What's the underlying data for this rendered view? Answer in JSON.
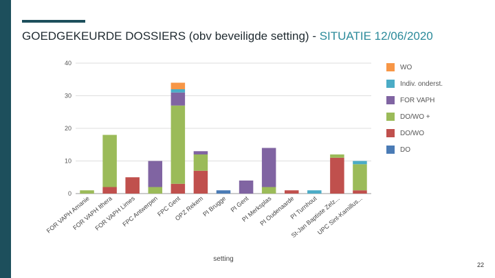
{
  "slide": {
    "title_main": "GOEDGEKEURDE DOSSIERS (obv beveiligde setting) - ",
    "title_accent": "SITUATIE 12/06/2020",
    "page_number": "22"
  },
  "chart_data": {
    "type": "bar",
    "stacked": true,
    "xlabel": "setting",
    "ylabel": "",
    "ylim": [
      0,
      40
    ],
    "yticks": [
      "0",
      "10",
      "20",
      "30",
      "40"
    ],
    "grid": true,
    "legend_position": "right",
    "categories": [
      "FOR VAPH Amanie",
      "FOR VAPH Ithera",
      "FOR VAPH Limes",
      "FPC Antwerpen",
      "FPC Gent",
      "OPZ Rekem",
      "PI Brugge",
      "PI Gent",
      "PI Merksplas",
      "PI Oudenaarde",
      "PI Turnhout",
      "St-Jan Baptiste Zelz...",
      "UPC Sint-Kamillus..."
    ],
    "series": [
      {
        "name": "DO",
        "color": "#4a7bb5",
        "values": [
          0,
          0,
          0,
          0,
          0,
          0,
          1,
          0,
          0,
          0,
          0,
          0,
          0
        ]
      },
      {
        "name": "DO/WO",
        "color": "#c0504d",
        "values": [
          0,
          2,
          5,
          0,
          3,
          7,
          0,
          0,
          0,
          1,
          0,
          11,
          1
        ]
      },
      {
        "name": "DO/WO +",
        "color": "#9bbb59",
        "values": [
          1,
          16,
          0,
          2,
          24,
          5,
          0,
          0,
          2,
          0,
          0,
          1,
          8
        ]
      },
      {
        "name": "FOR VAPH",
        "color": "#8064a2",
        "values": [
          0,
          0,
          0,
          8,
          4,
          1,
          0,
          4,
          12,
          0,
          0,
          0,
          0
        ]
      },
      {
        "name": "Indiv. onderst.",
        "color": "#4bacc6",
        "values": [
          0,
          0,
          0,
          0,
          1,
          0,
          0,
          0,
          0,
          0,
          1,
          0,
          1
        ]
      },
      {
        "name": "WO",
        "color": "#f79646",
        "values": [
          0,
          0,
          0,
          0,
          2,
          0,
          0,
          0,
          0,
          0,
          0,
          0,
          0
        ]
      }
    ]
  }
}
